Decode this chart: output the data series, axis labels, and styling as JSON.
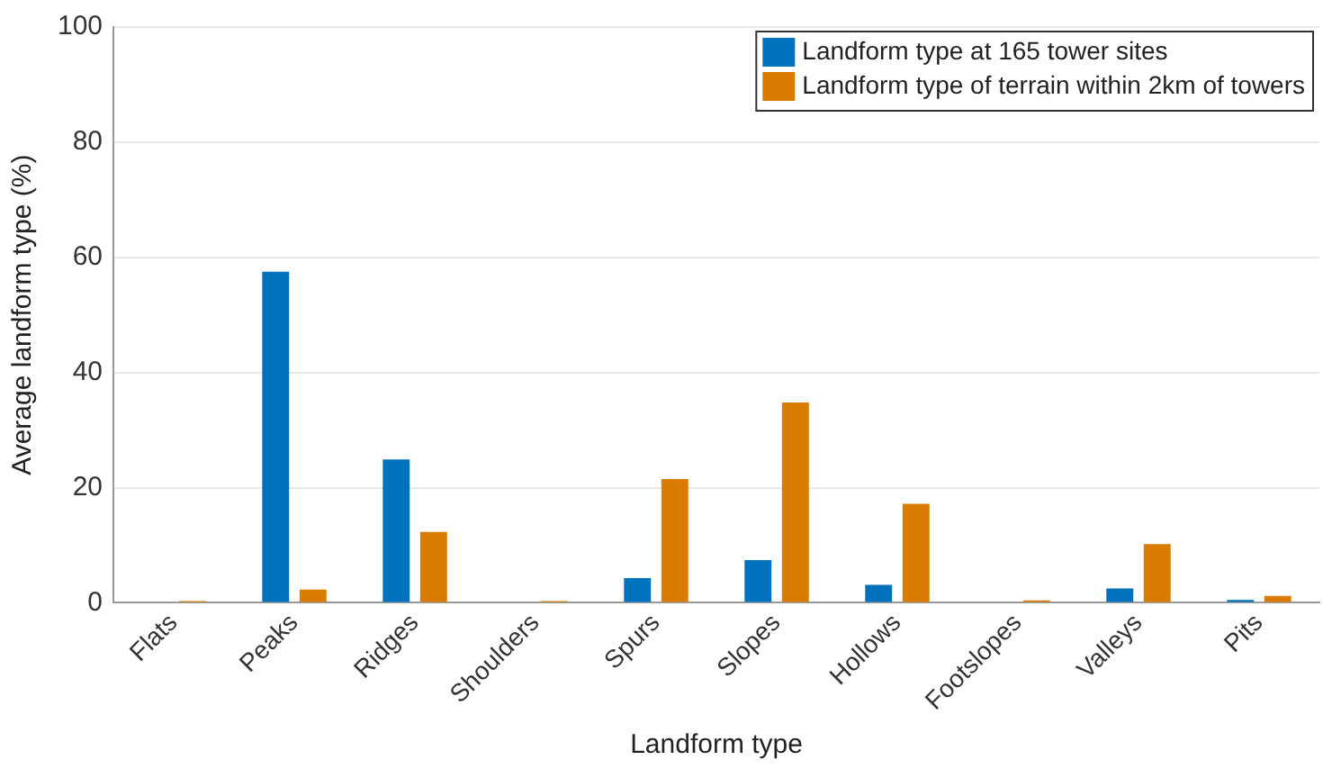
{
  "chart_data": {
    "type": "bar",
    "xlabel": "Landform type",
    "ylabel": "Average landform type (%)",
    "categories": [
      "Flats",
      "Peaks",
      "Ridges",
      "Shoulders",
      "Spurs",
      "Slopes",
      "Hollows",
      "Footslopes",
      "Valleys",
      "Pits"
    ],
    "series": [
      {
        "name": "Landform type at 165 tower sites",
        "color": "#0072bd",
        "values": [
          0,
          57.5,
          24.9,
          0,
          4.3,
          7.4,
          3.1,
          0,
          2.5,
          0.5
        ]
      },
      {
        "name": "Landform type of terrain within 2km of towers",
        "color": "#d97c00",
        "values": [
          0.3,
          2.3,
          12.3,
          0.3,
          21.5,
          34.8,
          17.2,
          0.4,
          10.2,
          1.2
        ]
      }
    ],
    "ylim": [
      0,
      100
    ],
    "yticks": [
      0,
      20,
      40,
      60,
      80,
      100
    ],
    "grid": "y",
    "legend": "top right"
  }
}
